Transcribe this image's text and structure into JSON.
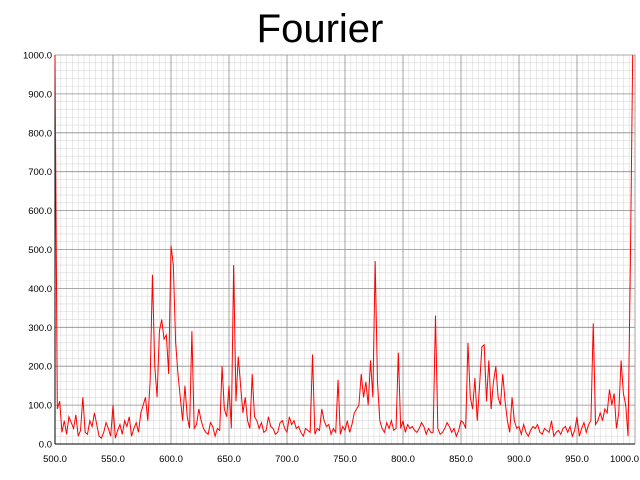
{
  "chart_data": {
    "type": "line",
    "title": "Fourier",
    "xlabel": "",
    "ylabel": "",
    "xlim": [
      500,
      1000
    ],
    "ylim": [
      0,
      1000
    ],
    "x_ticks": [
      "500.0",
      "550.0",
      "600.0",
      "650.0",
      "700.0",
      "750.0",
      "800.0",
      "850.0",
      "900.0",
      "950.0",
      "1000.0"
    ],
    "y_ticks": [
      "0.0",
      "100.0",
      "200.0",
      "300.0",
      "400.0",
      "500.0",
      "600.0",
      "700.0",
      "800.0",
      "900.0",
      "1000.0"
    ],
    "grid": true,
    "legend": "none",
    "series_color": "#ff0000",
    "series": [
      {
        "x_start": 500,
        "x_step": 2,
        "values": [
          1000,
          90,
          110,
          30,
          60,
          25,
          70,
          55,
          40,
          75,
          20,
          35,
          120,
          30,
          25,
          60,
          45,
          80,
          50,
          20,
          15,
          30,
          55,
          40,
          20,
          100,
          15,
          35,
          50,
          25,
          60,
          45,
          70,
          20,
          40,
          55,
          30,
          80,
          100,
          120,
          60,
          160,
          435,
          200,
          120,
          290,
          320,
          270,
          280,
          180,
          510,
          460,
          260,
          180,
          120,
          60,
          150,
          70,
          40,
          290,
          40,
          50,
          90,
          60,
          40,
          30,
          25,
          55,
          45,
          20,
          40,
          35,
          200,
          90,
          70,
          150,
          40,
          460,
          110,
          225,
          150,
          80,
          120,
          60,
          40,
          180,
          70,
          60,
          40,
          55,
          30,
          35,
          70,
          45,
          40,
          25,
          30,
          55,
          60,
          40,
          30,
          70,
          50,
          60,
          40,
          45,
          30,
          20,
          40,
          35,
          30,
          230,
          25,
          40,
          35,
          90,
          60,
          45,
          50,
          25,
          40,
          30,
          165,
          25,
          45,
          35,
          60,
          30,
          50,
          80,
          90,
          100,
          180,
          120,
          160,
          100,
          215,
          120,
          470,
          160,
          60,
          40,
          30,
          55,
          40,
          60,
          35,
          40,
          235,
          40,
          60,
          30,
          50,
          40,
          45,
          35,
          30,
          40,
          55,
          45,
          25,
          40,
          30,
          30,
          330,
          40,
          25,
          30,
          40,
          55,
          45,
          30,
          40,
          20,
          35,
          60,
          55,
          40,
          260,
          120,
          90,
          170,
          60,
          150,
          250,
          255,
          110,
          215,
          90,
          160,
          200,
          120,
          100,
          180,
          110,
          60,
          30,
          120,
          60,
          40,
          45,
          25,
          50,
          30,
          20,
          35,
          45,
          40,
          50,
          30,
          25,
          40,
          35,
          30,
          60,
          20,
          30,
          35,
          25,
          40,
          45,
          30,
          45,
          20,
          35,
          70,
          20,
          40,
          55,
          30,
          50,
          60,
          310,
          50,
          60,
          80,
          60,
          90,
          80,
          140,
          100,
          130,
          40,
          80,
          215,
          130,
          100,
          20,
          460,
          1000
        ]
      }
    ]
  }
}
